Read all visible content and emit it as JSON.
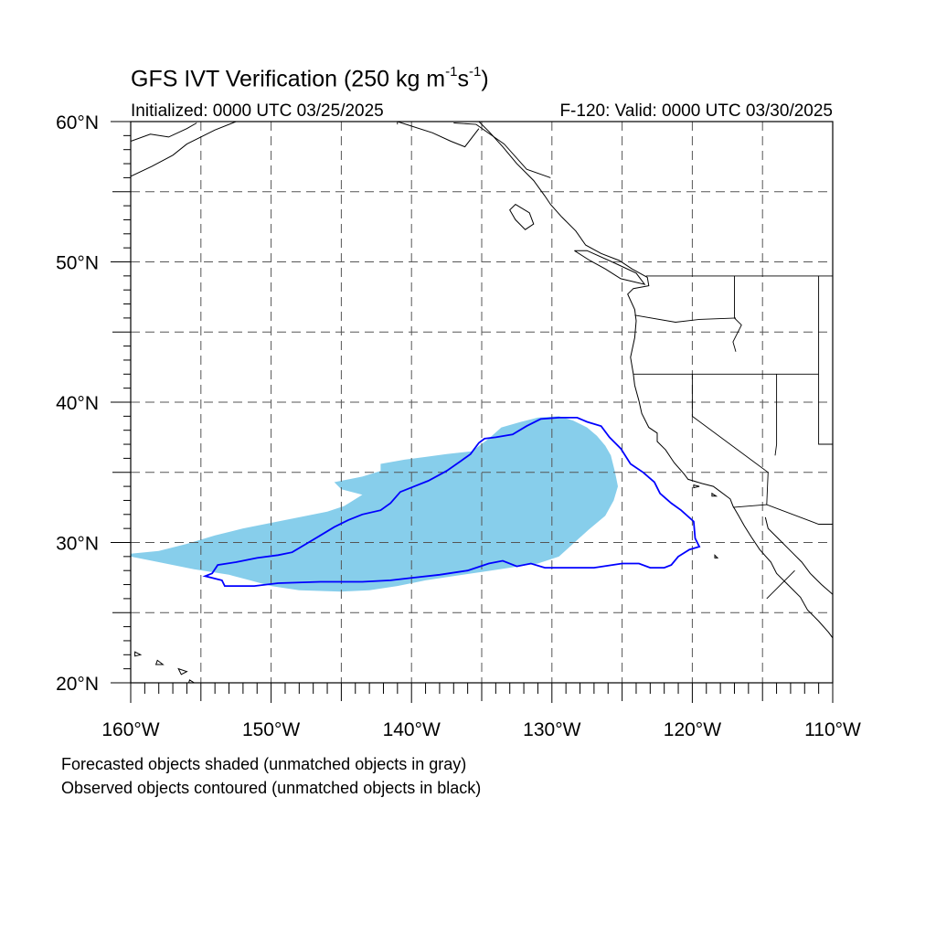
{
  "header": {
    "title_main": "GFS IVT Verification (250 kg m",
    "title_sup1": "-1",
    "title_mid": "s",
    "title_sup2": "-1",
    "title_end": ")",
    "initialized": "Initialized: 0000 UTC 03/25/2025",
    "valid": "F-120: Valid: 0000 UTC 03/30/2025"
  },
  "map": {
    "projection": "cylindrical equidistant",
    "lon_range": [
      -160,
      -110
    ],
    "lat_range": [
      20,
      60
    ],
    "lat_labels": [
      "20°N",
      "30°N",
      "40°N",
      "50°N",
      "60°N"
    ],
    "lon_labels": [
      "160°W",
      "150°W",
      "140°W",
      "130°W",
      "120°W",
      "110°W"
    ],
    "grid": "dashed every 5°",
    "colors": {
      "forecast_fill": "#87ceeb",
      "observed_contour": "#0000ff",
      "coastline": "#000000",
      "grid": "#555555"
    }
  },
  "objects": {
    "forecast_object": {
      "type": "filled",
      "color": "#87ceeb",
      "outline": [
        [
          -160,
          29.2
        ],
        [
          -158,
          29.4
        ],
        [
          -156,
          29.9
        ],
        [
          -154,
          30.5
        ],
        [
          -152,
          31.0
        ],
        [
          -150,
          31.4
        ],
        [
          -148,
          31.8
        ],
        [
          -146,
          32.2
        ],
        [
          -144.8,
          32.6
        ],
        [
          -143.5,
          33.4
        ],
        [
          -145,
          33.8
        ],
        [
          -145.5,
          34.3
        ],
        [
          -143.5,
          34.7
        ],
        [
          -142.2,
          35.1
        ],
        [
          -142.2,
          35.6
        ],
        [
          -140.5,
          35.9
        ],
        [
          -139,
          36.1
        ],
        [
          -137.5,
          36.3
        ],
        [
          -135.7,
          36.5
        ],
        [
          -134.5,
          37.4
        ],
        [
          -133.6,
          38.2
        ],
        [
          -132.2,
          38.6
        ],
        [
          -131,
          38.9
        ],
        [
          -129.5,
          39.0
        ],
        [
          -128.5,
          38.7
        ],
        [
          -127.5,
          38.2
        ],
        [
          -126.8,
          37.6
        ],
        [
          -126.2,
          36.9
        ],
        [
          -125.8,
          36.2
        ],
        [
          -125.5,
          35.0
        ],
        [
          -125.3,
          34.0
        ],
        [
          -125.6,
          33.0
        ],
        [
          -126.2,
          31.9
        ],
        [
          -127.4,
          30.9
        ],
        [
          -128.5,
          29.9
        ],
        [
          -129.5,
          29.0
        ],
        [
          -131,
          28.5
        ],
        [
          -133,
          28.2
        ],
        [
          -135,
          27.9
        ],
        [
          -137,
          27.6
        ],
        [
          -139,
          27.3
        ],
        [
          -141,
          26.9
        ],
        [
          -143,
          26.6
        ],
        [
          -145,
          26.5
        ],
        [
          -148,
          26.6
        ],
        [
          -150,
          26.9
        ],
        [
          -151.5,
          27.3
        ],
        [
          -153,
          27.7
        ],
        [
          -155.5,
          28.1
        ],
        [
          -158,
          28.6
        ],
        [
          -160,
          29.0
        ]
      ]
    },
    "observed_object": {
      "type": "contour",
      "color": "#0000ff",
      "outline": [
        [
          -154.2,
          27.8
        ],
        [
          -153.8,
          28.4
        ],
        [
          -152.5,
          28.6
        ],
        [
          -151,
          28.9
        ],
        [
          -149.5,
          29.1
        ],
        [
          -148.5,
          29.3
        ],
        [
          -147.5,
          29.9
        ],
        [
          -146.5,
          30.5
        ],
        [
          -145.5,
          31.1
        ],
        [
          -144.5,
          31.6
        ],
        [
          -143.5,
          32.0
        ],
        [
          -142.2,
          32.3
        ],
        [
          -141.5,
          32.8
        ],
        [
          -140.8,
          33.6
        ],
        [
          -139.8,
          34.0
        ],
        [
          -138.8,
          34.4
        ],
        [
          -137.5,
          35.1
        ],
        [
          -136.5,
          35.8
        ],
        [
          -135.8,
          36.3
        ],
        [
          -135.2,
          37.1
        ],
        [
          -134.8,
          37.4
        ],
        [
          -134,
          37.5
        ],
        [
          -132.8,
          37.7
        ],
        [
          -131.8,
          38.3
        ],
        [
          -130.8,
          38.8
        ],
        [
          -129.5,
          38.9
        ],
        [
          -128.2,
          38.9
        ],
        [
          -127.5,
          38.6
        ],
        [
          -126.5,
          38.3
        ],
        [
          -125.9,
          37.5
        ],
        [
          -125.1,
          36.7
        ],
        [
          -124.4,
          35.6
        ],
        [
          -123.5,
          35.0
        ],
        [
          -122.7,
          34.3
        ],
        [
          -122.3,
          33.5
        ],
        [
          -121.5,
          32.8
        ],
        [
          -120.8,
          32.3
        ],
        [
          -119.9,
          31.5
        ],
        [
          -119.8,
          30.3
        ],
        [
          -119.5,
          29.7
        ],
        [
          -120.2,
          29.5
        ],
        [
          -121,
          29.0
        ],
        [
          -121.5,
          28.4
        ],
        [
          -122,
          28.2
        ],
        [
          -123,
          28.2
        ],
        [
          -123.8,
          28.5
        ],
        [
          -125,
          28.5
        ],
        [
          -127,
          28.2
        ],
        [
          -129,
          28.2
        ],
        [
          -130.5,
          28.2
        ],
        [
          -131.5,
          28.5
        ],
        [
          -132.5,
          28.3
        ],
        [
          -133.5,
          28.7
        ],
        [
          -134.5,
          28.5
        ],
        [
          -136,
          28.0
        ],
        [
          -138,
          27.7
        ],
        [
          -139.8,
          27.5
        ],
        [
          -141.5,
          27.3
        ],
        [
          -143.5,
          27.2
        ],
        [
          -146.5,
          27.2
        ],
        [
          -149.5,
          27.1
        ],
        [
          -151.2,
          26.9
        ],
        [
          -153.3,
          26.9
        ],
        [
          -153.5,
          27.3
        ],
        [
          -154.7,
          27.6
        ]
      ]
    }
  },
  "footnotes": {
    "line1": "Forecasted objects shaded (unmatched objects in gray)",
    "line2": "Observed objects contoured (unmatched objects in black)"
  }
}
